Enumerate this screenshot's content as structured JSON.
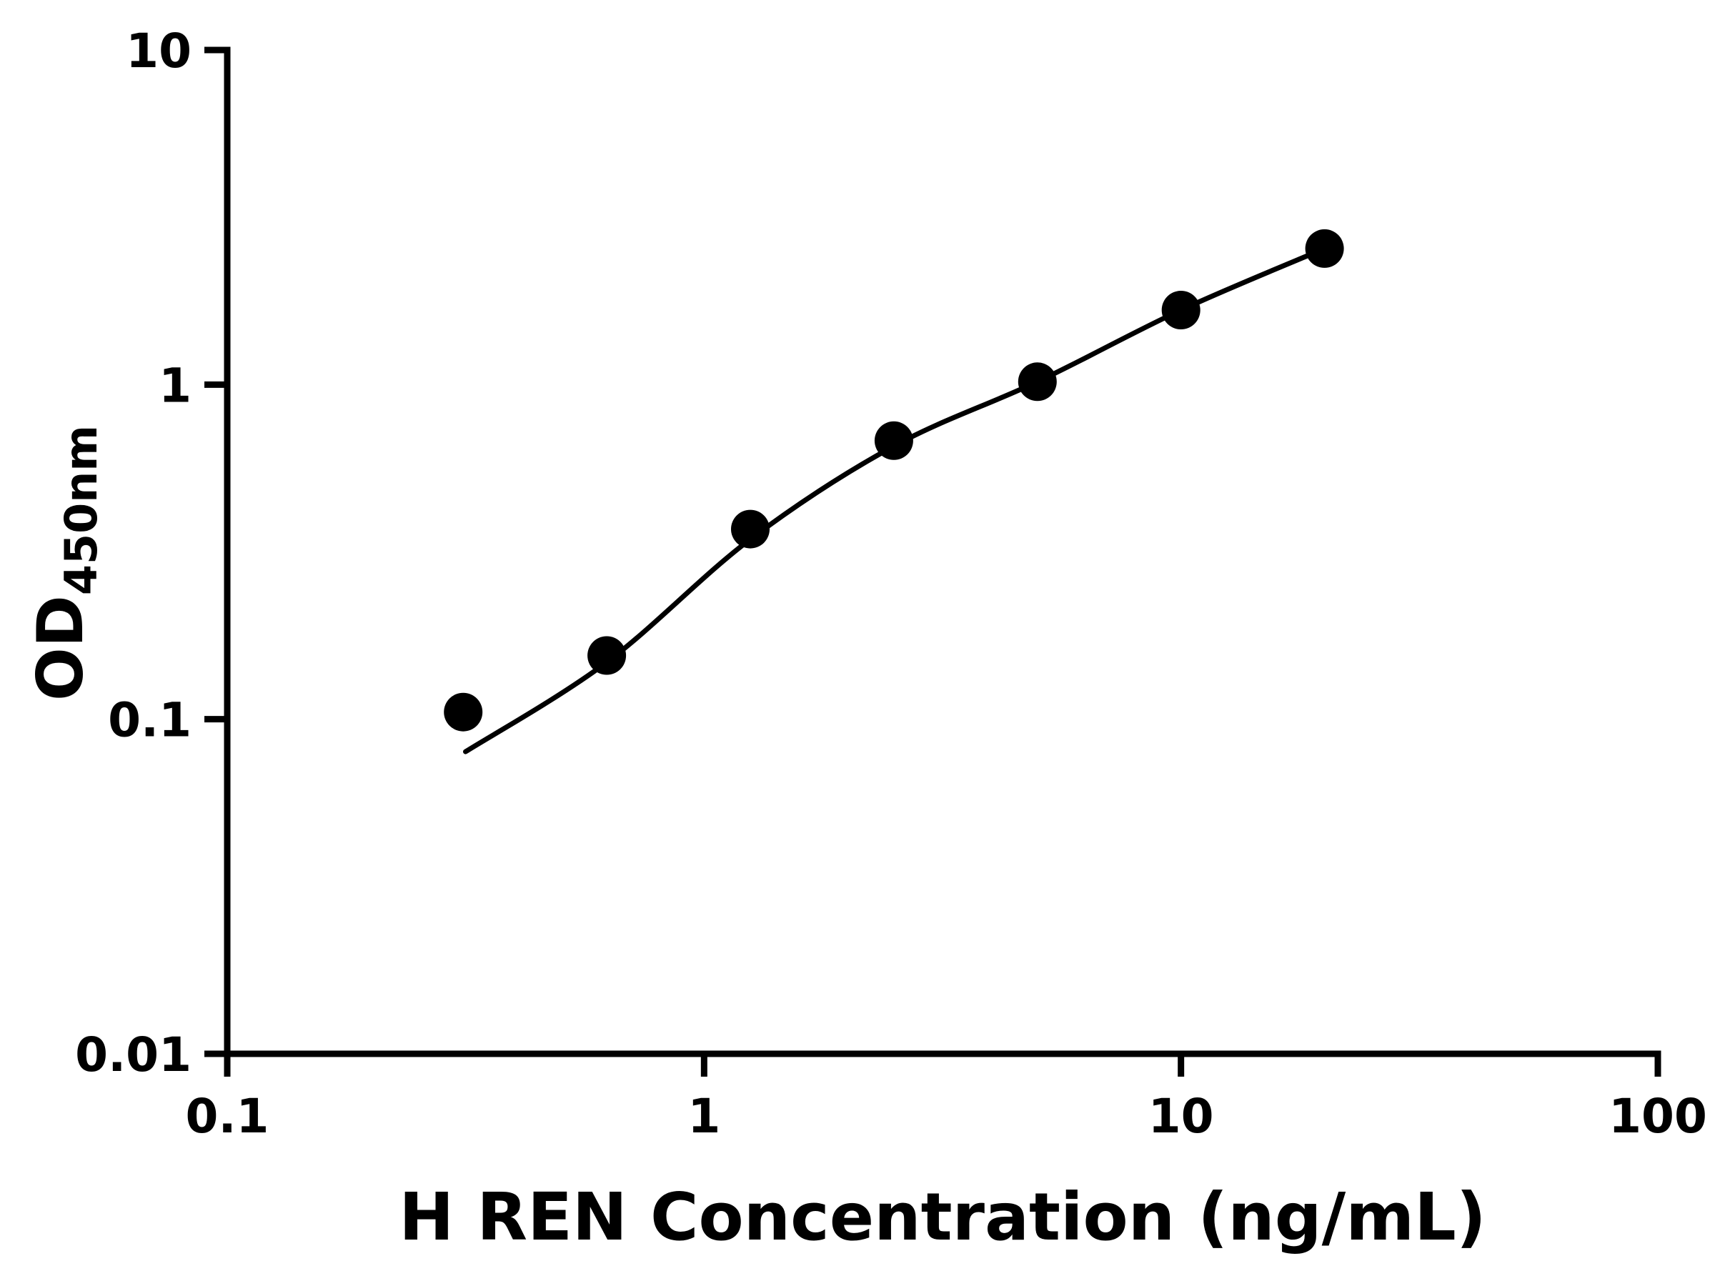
{
  "page": {
    "background_color": "#ffffff"
  },
  "chart_data": {
    "type": "scatter",
    "title": "",
    "xlabel": "H REN Concentration (ng/mL)",
    "ylabel_main": "OD",
    "ylabel_sub": "450nm",
    "x_scale": "log",
    "y_scale": "log",
    "xlim": [
      0.1,
      100
    ],
    "ylim": [
      0.01,
      10
    ],
    "x_ticks": [
      0.1,
      1,
      10,
      100
    ],
    "x_tick_labels": [
      "0.1",
      "1",
      "10",
      "100"
    ],
    "y_ticks": [
      0.01,
      0.1,
      1,
      10
    ],
    "y_tick_labels": [
      "0.01",
      "0.1",
      "1",
      "10"
    ],
    "grid": false,
    "legend": "none",
    "axis_color": "#000000",
    "marker_color": "#000000",
    "curve_color": "#000000",
    "series": [
      {
        "name": "H REN standard points",
        "marker": "circle-filled",
        "points": [
          {
            "x": 0.3125,
            "y": 0.105
          },
          {
            "x": 0.625,
            "y": 0.155
          },
          {
            "x": 1.25,
            "y": 0.37
          },
          {
            "x": 2.5,
            "y": 0.68
          },
          {
            "x": 5,
            "y": 1.02
          },
          {
            "x": 10,
            "y": 1.67
          },
          {
            "x": 20,
            "y": 2.55
          }
        ]
      }
    ],
    "fit_curve": {
      "name": "4PL fit curve",
      "points": [
        {
          "x": 0.316,
          "y": 0.08
        },
        {
          "x": 0.625,
          "y": 0.148
        },
        {
          "x": 1.25,
          "y": 0.345
        },
        {
          "x": 2.5,
          "y": 0.655
        },
        {
          "x": 5,
          "y": 1.02
        },
        {
          "x": 10,
          "y": 1.67
        },
        {
          "x": 20,
          "y": 2.55
        }
      ]
    }
  }
}
